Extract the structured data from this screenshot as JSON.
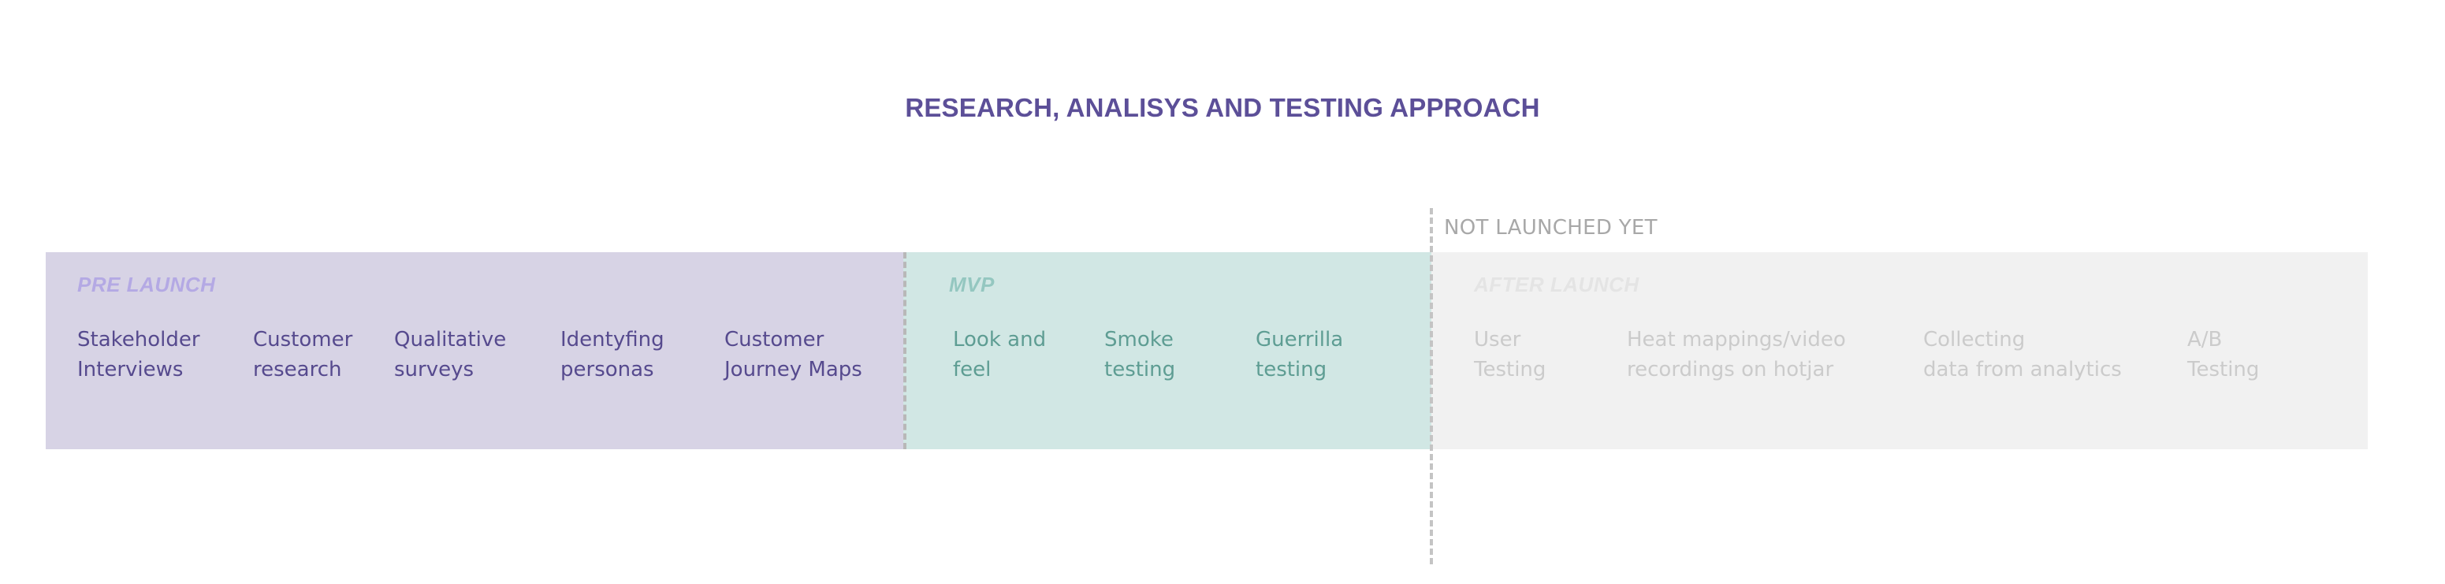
{
  "title": "RESEARCH, ANALISYS AND TESTING APPROACH",
  "marker_label": "NOT LAUNCHED YET",
  "colors": {
    "title": "#5c4f98",
    "pre_launch_band": "#d7d3e5",
    "mvp_band": "#d1e7e4",
    "after_launch_band": "#f1f1f1",
    "divider": "#b8b8b8"
  },
  "phases": {
    "pre_launch": {
      "label": "PRE LAUNCH",
      "items": [
        "Stakeholder\nInterviews",
        "Customer\nresearch",
        "Qualitative\nsurveys",
        "Identyfing\npersonas",
        "Customer\nJourney Maps"
      ]
    },
    "mvp": {
      "label": "MVP",
      "items": [
        "Look and\nfeel",
        "Smoke\ntesting",
        "Guerrilla\ntesting"
      ]
    },
    "after_launch": {
      "label": "AFTER LAUNCH",
      "items": [
        "User\nTesting",
        "Heat mappings/video\nrecordings on hotjar",
        "Collecting\ndata from analytics",
        "A/B\nTesting"
      ]
    }
  }
}
